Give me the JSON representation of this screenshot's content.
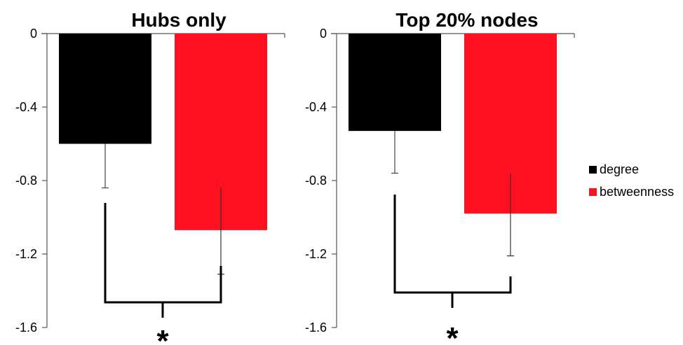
{
  "chart_data": [
    {
      "type": "bar",
      "title": "Hubs only",
      "categories": [
        "degree",
        "betweenness"
      ],
      "values": [
        -0.6,
        -1.07
      ],
      "error_low": [
        -0.84,
        -1.31
      ],
      "error_high": [
        -0.6,
        -0.84
      ],
      "ylim": [
        -1.6,
        0
      ],
      "yticks": [
        0,
        -0.4,
        -0.8,
        -1.2,
        -1.6
      ],
      "ytick_labels": [
        "0",
        "-0.4",
        "-0.8",
        "-1.2",
        "-1.6"
      ],
      "significance": "*",
      "xlabel": "",
      "ylabel": ""
    },
    {
      "type": "bar",
      "title": "Top 20% nodes",
      "categories": [
        "degree",
        "betweenness"
      ],
      "values": [
        -0.53,
        -0.98
      ],
      "error_low": [
        -0.76,
        -1.21
      ],
      "error_high": [
        -0.53,
        -0.76
      ],
      "ylim": [
        -1.6,
        0
      ],
      "yticks": [
        0,
        -0.4,
        -0.8,
        -1.2,
        -1.6
      ],
      "ytick_labels": [
        "0",
        "-0.4",
        "-0.8",
        "-1.2",
        "-1.6"
      ],
      "significance": "*",
      "xlabel": "",
      "ylabel": ""
    }
  ],
  "legend": {
    "position": "right",
    "items": [
      {
        "label": "degree",
        "color": "#000000"
      },
      {
        "label": "betweenness",
        "color": "#ff1020"
      }
    ]
  }
}
